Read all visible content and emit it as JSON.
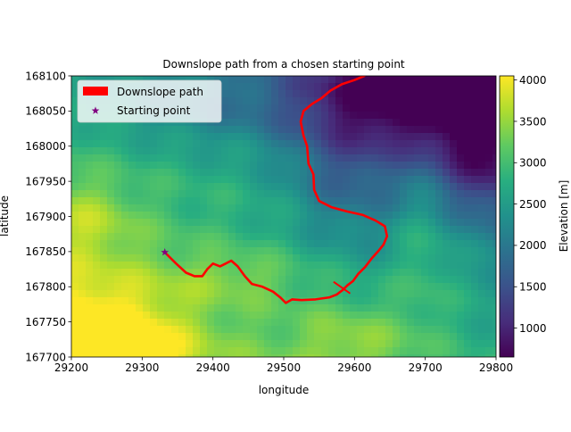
{
  "chart_data": {
    "type": "heatmap",
    "title": "Downslope path from a chosen starting point",
    "xlabel": "longitude",
    "ylabel": "latitude",
    "xlim": [
      29200,
      29800
    ],
    "ylim": [
      167700,
      168100
    ],
    "x_ticks": [
      "29200",
      "29300",
      "29400",
      "29500",
      "29600",
      "29700",
      "29800"
    ],
    "y_ticks": [
      "167700",
      "167750",
      "167800",
      "167850",
      "167900",
      "167950",
      "168000",
      "168050",
      "168100"
    ],
    "grid": false,
    "legend": {
      "position": "top-left",
      "entries": [
        {
          "label": "Downslope path",
          "color": "#ff0000",
          "marker": "patch"
        },
        {
          "label": "Starting point",
          "color": "#800080",
          "marker": "star"
        }
      ]
    },
    "colorbar": {
      "label": "Elevation [m]",
      "range": [
        650,
        4050
      ],
      "ticks": [
        "1000",
        "1500",
        "2000",
        "2500",
        "3000",
        "3500",
        "4000"
      ],
      "colormap": "viridis"
    },
    "starting_point": {
      "x": 29332,
      "y": 167849
    },
    "path": {
      "name": "Downslope path",
      "color": "#ff0000",
      "points": [
        [
          29332,
          167849
        ],
        [
          29348,
          167833
        ],
        [
          29362,
          167820
        ],
        [
          29374,
          167815
        ],
        [
          29385,
          167815
        ],
        [
          29392,
          167825
        ],
        [
          29400,
          167833
        ],
        [
          29410,
          167829
        ],
        [
          29420,
          167834
        ],
        [
          29426,
          167837
        ],
        [
          29435,
          167829
        ],
        [
          29445,
          167815
        ],
        [
          29455,
          167804
        ],
        [
          29470,
          167800
        ],
        [
          29485,
          167793
        ],
        [
          29495,
          167785
        ],
        [
          29503,
          167777
        ],
        [
          29512,
          167782
        ],
        [
          29525,
          167781
        ],
        [
          29545,
          167782
        ],
        [
          29565,
          167785
        ],
        [
          29575,
          167789
        ],
        [
          29583,
          167795
        ],
        [
          29590,
          167802
        ],
        [
          29598,
          167808
        ],
        [
          29605,
          167818
        ],
        [
          29615,
          167828
        ],
        [
          29624,
          167840
        ],
        [
          29633,
          167850
        ],
        [
          29641,
          167860
        ],
        [
          29646,
          167872
        ],
        [
          29643,
          167886
        ],
        [
          29630,
          167894
        ],
        [
          29612,
          167902
        ],
        [
          29590,
          167907
        ],
        [
          29568,
          167913
        ],
        [
          29550,
          167922
        ],
        [
          29543,
          167938
        ],
        [
          29542,
          167960
        ],
        [
          29535,
          167975
        ],
        [
          29533,
          168000
        ],
        [
          29528,
          168015
        ],
        [
          29524,
          168035
        ],
        [
          29528,
          168050
        ],
        [
          29540,
          168060
        ],
        [
          29553,
          168068
        ],
        [
          29566,
          168079
        ],
        [
          29582,
          168088
        ],
        [
          29600,
          168094
        ],
        [
          29614,
          168100
        ]
      ],
      "cluster_center": {
        "x": 29583,
        "y": 167798
      }
    },
    "elevation_field": {
      "base": 2750,
      "gradient_x": -1.4,
      "gradient_y": -2.2,
      "features": [
        {
          "x": 29230,
          "y": 167740,
          "sx": 90,
          "sy": 60,
          "amp": 900
        },
        {
          "x": 29270,
          "y": 167705,
          "sx": 60,
          "sy": 30,
          "amp": 700
        },
        {
          "x": 29220,
          "y": 167895,
          "sx": 50,
          "sy": 40,
          "amp": 500
        },
        {
          "x": 29440,
          "y": 167815,
          "sx": 70,
          "sy": 25,
          "amp": 350
        },
        {
          "x": 29680,
          "y": 168080,
          "sx": 110,
          "sy": 60,
          "amp": -1700
        },
        {
          "x": 29790,
          "y": 167990,
          "sx": 60,
          "sy": 70,
          "amp": -1300
        },
        {
          "x": 29590,
          "y": 167960,
          "sx": 60,
          "sy": 80,
          "amp": -700
        },
        {
          "x": 29390,
          "y": 168060,
          "sx": 120,
          "sy": 40,
          "amp": -500
        },
        {
          "x": 29600,
          "y": 167720,
          "sx": 60,
          "sy": 40,
          "amp": 500
        },
        {
          "x": 29700,
          "y": 167860,
          "sx": 30,
          "sy": 80,
          "amp": 350
        }
      ]
    }
  }
}
